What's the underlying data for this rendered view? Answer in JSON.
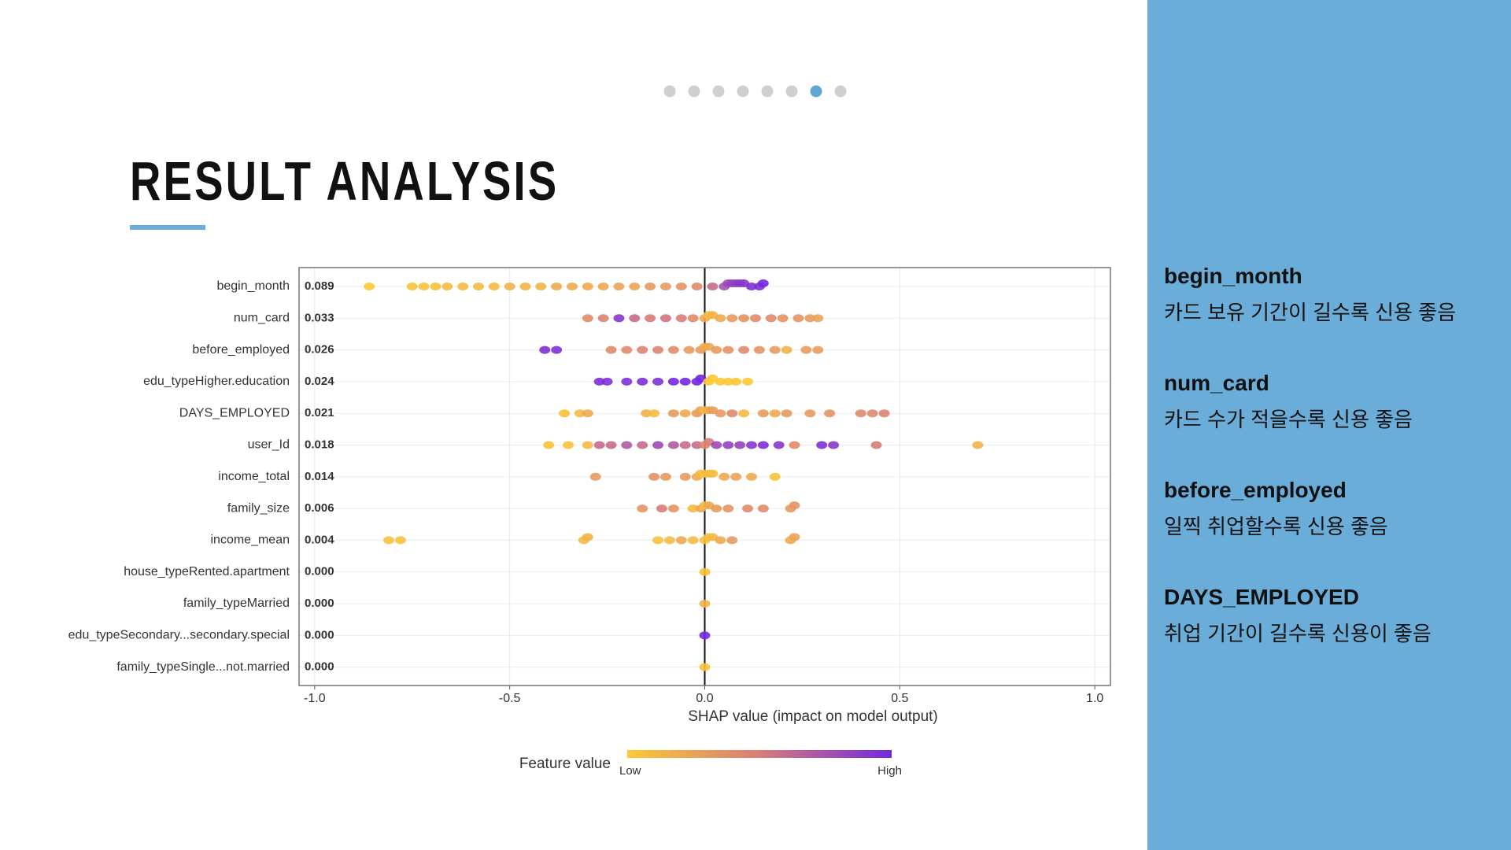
{
  "slide": {
    "title": "RESULT ANALYSIS",
    "notes": [
      {
        "heading": "begin_month",
        "text": "카드 보유 기간이 길수록 신용 좋음"
      },
      {
        "heading": "num_card",
        "text": "카드 수가 적을수록 신용 좋음"
      },
      {
        "heading": "before_employed",
        "text": "일찍 취업할수록 신용 좋음"
      },
      {
        "heading": "DAYS_EMPLOYED",
        "text": "취업 기간이 길수록 신용이 좋음"
      }
    ]
  },
  "chart_data": {
    "type": "beeswarm",
    "xlabel": "SHAP value (impact on model output)",
    "xlim": [
      -1.04,
      1.04
    ],
    "xticks": [
      {
        "value": -1,
        "label": "-1.0"
      },
      -0.5,
      {
        "value": 0,
        "label": "0.0"
      },
      0.5,
      {
        "value": 1,
        "label": "1.0"
      }
    ],
    "grid": true,
    "legend": {
      "title": "Feature value",
      "low": "Low",
      "high": "High"
    },
    "colormap": [
      "#fcc934",
      "#d97c78",
      "#7328e0"
    ],
    "categories": [
      "begin_month",
      "num_card",
      "before_employed",
      "edu_typeHigher.education",
      "DAYS_EMPLOYED",
      "user_Id",
      "income_total",
      "family_size",
      "income_mean",
      "house_typeRented.apartment",
      "family_typeMarried",
      "edu_typeSecondary...secondary.special",
      "family_typeSingle...not.married"
    ],
    "importance": [
      0.089,
      0.033,
      0.026,
      0.024,
      0.021,
      0.018,
      0.014,
      0.006,
      0.004,
      {
        "value": 0,
        "label": "0.000"
      },
      {
        "value": 0,
        "label": "0.000"
      },
      {
        "value": 0,
        "label": "0.000"
      },
      {
        "value": 0,
        "label": "0.000"
      }
    ],
    "points": [
      [
        [
          -0.86,
          0
        ],
        [
          -0.75,
          0.05
        ],
        [
          -0.72,
          0.05
        ],
        [
          -0.69,
          0.05
        ],
        [
          -0.66,
          0.1
        ],
        [
          -0.62,
          0.1
        ],
        [
          -0.58,
          0.1
        ],
        [
          -0.54,
          0.1
        ],
        [
          -0.5,
          0.15
        ],
        [
          -0.46,
          0.15
        ],
        [
          -0.42,
          0.15
        ],
        [
          -0.38,
          0.2
        ],
        [
          -0.34,
          0.2
        ],
        [
          -0.3,
          0.2
        ],
        [
          -0.26,
          0.2
        ],
        [
          -0.22,
          0.25
        ],
        [
          -0.18,
          0.25
        ],
        [
          -0.14,
          0.3
        ],
        [
          -0.1,
          0.3
        ],
        [
          -0.06,
          0.35
        ],
        [
          -0.02,
          0.4
        ],
        [
          0.02,
          0.6
        ],
        [
          0.05,
          0.75
        ],
        [
          0.06,
          0.8
        ],
        [
          0.07,
          0.85
        ],
        [
          0.08,
          0.85
        ],
        [
          0.09,
          0.9
        ],
        [
          0.1,
          0.9
        ],
        [
          0.12,
          0.95
        ],
        [
          0.14,
          0.95
        ],
        [
          0.15,
          1
        ]
      ],
      [
        [
          -0.3,
          0.4
        ],
        [
          -0.26,
          0.45
        ],
        [
          -0.22,
          0.9
        ],
        [
          -0.18,
          0.6
        ],
        [
          -0.14,
          0.5
        ],
        [
          -0.1,
          0.55
        ],
        [
          -0.06,
          0.5
        ],
        [
          -0.03,
          0.4
        ],
        [
          0,
          0.2
        ],
        [
          0.01,
          0.1
        ],
        [
          0.02,
          0.15
        ],
        [
          0.04,
          0.2
        ],
        [
          0.07,
          0.3
        ],
        [
          0.1,
          0.35
        ],
        [
          0.13,
          0.4
        ],
        [
          0.17,
          0.4
        ],
        [
          0.2,
          0.35
        ],
        [
          0.24,
          0.35
        ],
        [
          0.27,
          0.3
        ],
        [
          0.29,
          0.25
        ]
      ],
      [
        [
          -0.41,
          0.95
        ],
        [
          -0.38,
          0.95
        ],
        [
          -0.24,
          0.4
        ],
        [
          -0.2,
          0.4
        ],
        [
          -0.16,
          0.45
        ],
        [
          -0.12,
          0.45
        ],
        [
          -0.08,
          0.4
        ],
        [
          -0.04,
          0.3
        ],
        [
          -0.01,
          0.3
        ],
        [
          0,
          0.2
        ],
        [
          0.01,
          0.2
        ],
        [
          0.03,
          0.3
        ],
        [
          0.06,
          0.35
        ],
        [
          0.1,
          0.4
        ],
        [
          0.14,
          0.35
        ],
        [
          0.18,
          0.3
        ],
        [
          0.21,
          0.15
        ],
        [
          0.26,
          0.3
        ],
        [
          0.29,
          0.3
        ]
      ],
      [
        [
          -0.27,
          0.95
        ],
        [
          -0.25,
          0.95
        ],
        [
          -0.2,
          0.95
        ],
        [
          -0.16,
          0.95
        ],
        [
          -0.12,
          0.95
        ],
        [
          -0.08,
          1
        ],
        [
          -0.05,
          1
        ],
        [
          -0.02,
          1
        ],
        [
          -0.01,
          1
        ],
        [
          0.01,
          0
        ],
        [
          0.02,
          0
        ],
        [
          0.04,
          0
        ],
        [
          0.06,
          0
        ],
        [
          0.08,
          0
        ],
        [
          0.11,
          0
        ]
      ],
      [
        [
          -0.36,
          0.05
        ],
        [
          -0.32,
          0.1
        ],
        [
          -0.3,
          0.2
        ],
        [
          -0.15,
          0.15
        ],
        [
          -0.13,
          0.1
        ],
        [
          -0.08,
          0.3
        ],
        [
          -0.05,
          0.2
        ],
        [
          -0.02,
          0.3
        ],
        [
          -0.01,
          0.25
        ],
        [
          0,
          0.1
        ],
        [
          0.01,
          0.2
        ],
        [
          0.02,
          0.3
        ],
        [
          0.04,
          0.3
        ],
        [
          0.07,
          0.4
        ],
        [
          0.1,
          0.1
        ],
        [
          0.15,
          0.3
        ],
        [
          0.18,
          0.2
        ],
        [
          0.21,
          0.3
        ],
        [
          0.27,
          0.3
        ],
        [
          0.32,
          0.35
        ],
        [
          0.4,
          0.4
        ],
        [
          0.43,
          0.4
        ],
        [
          0.46,
          0.45
        ]
      ],
      [
        [
          -0.4,
          0.05
        ],
        [
          -0.35,
          0.05
        ],
        [
          -0.3,
          0.1
        ],
        [
          -0.27,
          0.6
        ],
        [
          -0.24,
          0.6
        ],
        [
          -0.2,
          0.7
        ],
        [
          -0.16,
          0.6
        ],
        [
          -0.12,
          0.8
        ],
        [
          -0.08,
          0.7
        ],
        [
          -0.05,
          0.6
        ],
        [
          -0.02,
          0.6
        ],
        [
          0,
          0.4
        ],
        [
          0.01,
          0.5
        ],
        [
          0.03,
          0.8
        ],
        [
          0.06,
          0.85
        ],
        [
          0.09,
          0.85
        ],
        [
          0.12,
          0.9
        ],
        [
          0.15,
          0.95
        ],
        [
          0.19,
          0.9
        ],
        [
          0.23,
          0.4
        ],
        [
          0.3,
          0.95
        ],
        [
          0.33,
          0.9
        ],
        [
          0.44,
          0.5
        ],
        [
          0.7,
          0.15
        ]
      ],
      [
        [
          -0.28,
          0.3
        ],
        [
          -0.13,
          0.35
        ],
        [
          -0.1,
          0.3
        ],
        [
          -0.05,
          0.3
        ],
        [
          -0.02,
          0.2
        ],
        [
          -0.01,
          0.1
        ],
        [
          0,
          0.05
        ],
        [
          0.01,
          0.1
        ],
        [
          0.02,
          0.1
        ],
        [
          0.05,
          0.2
        ],
        [
          0.08,
          0.25
        ],
        [
          0.12,
          0.2
        ],
        [
          0.18,
          0.05
        ]
      ],
      [
        [
          -0.16,
          0.35
        ],
        [
          -0.11,
          0.5
        ],
        [
          -0.08,
          0.35
        ],
        [
          -0.03,
          0.1
        ],
        [
          -0.01,
          0.2
        ],
        [
          0,
          0.1
        ],
        [
          0.01,
          0.2
        ],
        [
          0.03,
          0.3
        ],
        [
          0.06,
          0.35
        ],
        [
          0.11,
          0.4
        ],
        [
          0.15,
          0.4
        ],
        [
          0.22,
          0.3
        ],
        [
          0.23,
          0.35
        ]
      ],
      [
        [
          -0.81,
          0.05
        ],
        [
          -0.78,
          0.05
        ],
        [
          -0.31,
          0.1
        ],
        [
          -0.3,
          0.15
        ],
        [
          -0.12,
          0.05
        ],
        [
          -0.09,
          0.1
        ],
        [
          -0.06,
          0.2
        ],
        [
          -0.03,
          0.1
        ],
        [
          0,
          0.05
        ],
        [
          0.01,
          0.1
        ],
        [
          0.02,
          0.1
        ],
        [
          0.04,
          0.2
        ],
        [
          0.07,
          0.3
        ],
        [
          0.22,
          0.2
        ],
        [
          0.23,
          0.25
        ]
      ],
      [
        [
          0,
          0.05
        ]
      ],
      [
        [
          0,
          0.15
        ]
      ],
      [
        [
          0,
          1
        ]
      ],
      [
        [
          0,
          0.05
        ]
      ]
    ]
  }
}
